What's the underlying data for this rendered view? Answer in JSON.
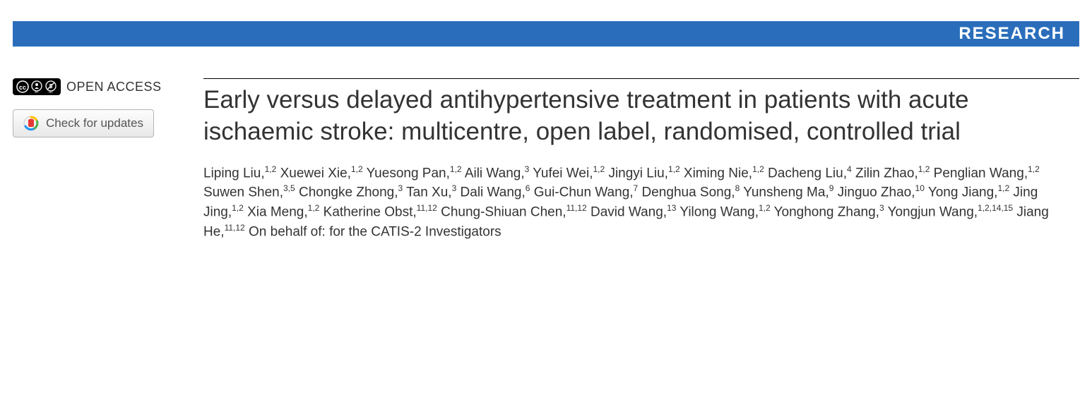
{
  "header": {
    "section_label": "RESEARCH",
    "bar_color": "#2a6ebb",
    "text_color": "#ffffff"
  },
  "sidebar": {
    "open_access_label": "OPEN ACCESS",
    "check_updates_label": "Check for updates"
  },
  "article": {
    "title": "Early versus delayed antihypertensive treatment in patients with acute ischaemic stroke: multicentre, open label, randomised, controlled trial",
    "authors": [
      {
        "name": "Liping Liu",
        "affil": "1,2"
      },
      {
        "name": "Xuewei Xie",
        "affil": "1,2"
      },
      {
        "name": "Yuesong Pan",
        "affil": "1,2"
      },
      {
        "name": "Aili Wang",
        "affil": "3"
      },
      {
        "name": "Yufei Wei",
        "affil": "1,2"
      },
      {
        "name": "Jingyi Liu",
        "affil": "1,2"
      },
      {
        "name": "Ximing Nie",
        "affil": "1,2"
      },
      {
        "name": "Dacheng Liu",
        "affil": "4"
      },
      {
        "name": "Zilin Zhao",
        "affil": "1,2"
      },
      {
        "name": "Penglian Wang",
        "affil": "1,2"
      },
      {
        "name": "Suwen Shen",
        "affil": "3,5"
      },
      {
        "name": "Chongke Zhong",
        "affil": "3"
      },
      {
        "name": "Tan Xu",
        "affil": "3"
      },
      {
        "name": "Dali Wang",
        "affil": "6"
      },
      {
        "name": "Gui-Chun Wang",
        "affil": "7"
      },
      {
        "name": "Denghua Song",
        "affil": "8"
      },
      {
        "name": "Yunsheng Ma",
        "affil": "9"
      },
      {
        "name": "Jinguo Zhao",
        "affil": "10"
      },
      {
        "name": "Yong Jiang",
        "affil": "1,2"
      },
      {
        "name": "Jing Jing",
        "affil": "1,2"
      },
      {
        "name": "Xia Meng",
        "affil": "1,2"
      },
      {
        "name": "Katherine Obst",
        "affil": "11,12"
      },
      {
        "name": "Chung-Shiuan Chen",
        "affil": "11,12"
      },
      {
        "name": "David Wang",
        "affil": "13"
      },
      {
        "name": "Yilong Wang",
        "affil": "1,2"
      },
      {
        "name": "Yonghong Zhang",
        "affil": "3"
      },
      {
        "name": "Yongjun Wang",
        "affil": "1,2,14,15"
      },
      {
        "name": "Jiang He",
        "affil": "11,12"
      }
    ],
    "group_attribution": "On behalf of: for the CATIS-2 Investigators"
  },
  "styling": {
    "title_fontsize": 35,
    "title_color": "#333333",
    "author_fontsize": 19,
    "author_color": "#333333",
    "background": "#ffffff",
    "rule_color": "#000000"
  }
}
